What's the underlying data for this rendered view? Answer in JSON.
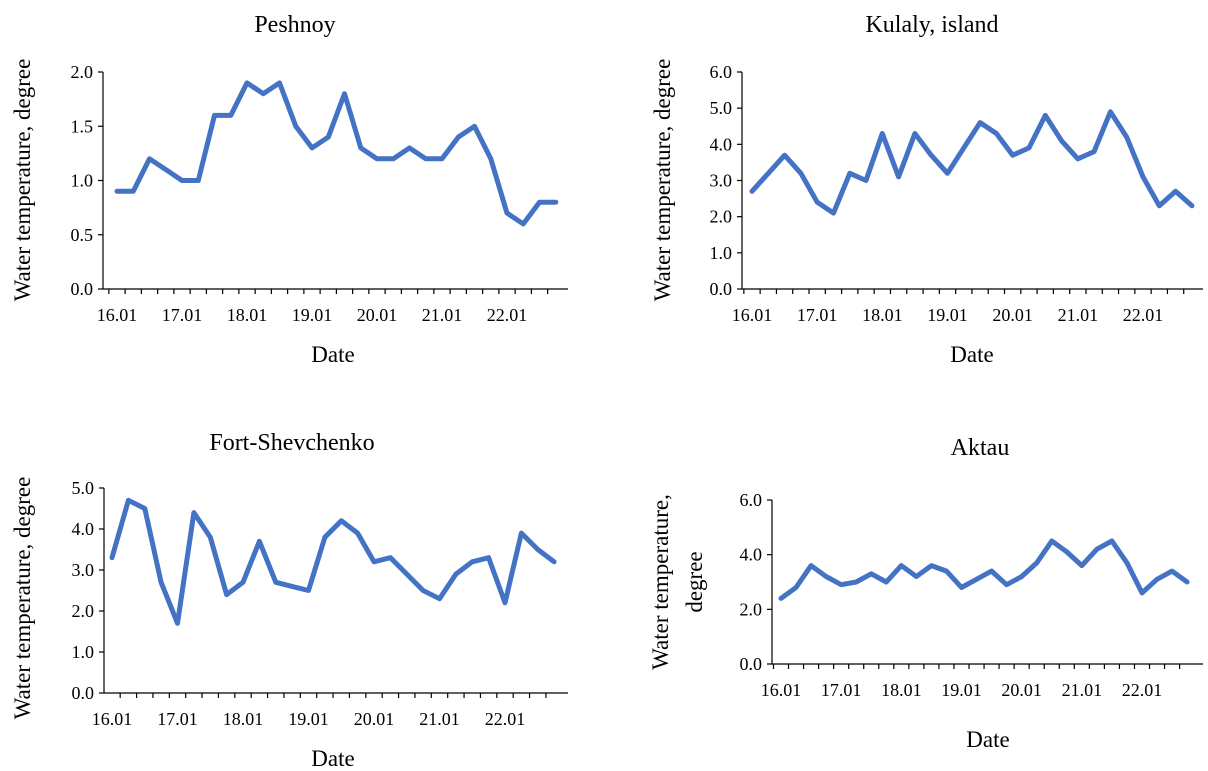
{
  "chart_data": [
    {
      "type": "line",
      "title": "Peshnoy",
      "xlabel": "Date",
      "ylabel": "Water temperature, degree",
      "ylim": [
        0,
        2
      ],
      "yticks": [
        "0.0",
        "0.5",
        "1.0",
        "1.5",
        "2.0"
      ],
      "xticks": [
        "16.01",
        "17.01",
        "18.01",
        "19.01",
        "20.01",
        "21.01",
        "22.01"
      ],
      "values": [
        0.9,
        0.9,
        1.2,
        1.1,
        1.0,
        1.0,
        1.6,
        1.6,
        1.9,
        1.8,
        1.9,
        1.5,
        1.3,
        1.4,
        1.8,
        1.3,
        1.2,
        1.2,
        1.3,
        1.2,
        1.2,
        1.4,
        1.5,
        1.2,
        0.7,
        0.6,
        0.8,
        0.8
      ],
      "color": "#4472C4",
      "grid": false
    },
    {
      "type": "line",
      "title": "Kulaly, island",
      "xlabel": "Date",
      "ylabel": "Water temperature, degree",
      "ylim": [
        0,
        6
      ],
      "yticks": [
        "0.0",
        "1.0",
        "2.0",
        "3.0",
        "4.0",
        "5.0",
        "6.0"
      ],
      "xticks": [
        "16.01",
        "17.01",
        "18.01",
        "19.01",
        "20.01",
        "21.01",
        "22.01"
      ],
      "values": [
        2.7,
        3.2,
        3.7,
        3.2,
        2.4,
        2.1,
        3.2,
        3.0,
        4.3,
        3.1,
        4.3,
        3.7,
        3.2,
        3.9,
        4.6,
        4.3,
        3.7,
        3.9,
        4.8,
        4.1,
        3.6,
        3.8,
        4.9,
        4.2,
        3.1,
        2.3,
        2.7,
        2.3
      ],
      "color": "#4472C4",
      "grid": false
    },
    {
      "type": "line",
      "title": "Fort-Shevchenko",
      "xlabel": "Date",
      "ylabel": "Water temperature, degree",
      "ylim": [
        0,
        5
      ],
      "yticks": [
        "0.0",
        "1.0",
        "2.0",
        "3.0",
        "4.0",
        "5.0"
      ],
      "xticks": [
        "16.01",
        "17.01",
        "18.01",
        "19.01",
        "20.01",
        "21.01",
        "22.01"
      ],
      "values": [
        3.3,
        4.7,
        4.5,
        2.7,
        1.7,
        4.4,
        3.8,
        2.4,
        2.7,
        3.7,
        2.7,
        2.6,
        2.5,
        3.8,
        4.2,
        3.9,
        3.2,
        3.3,
        2.9,
        2.5,
        2.3,
        2.9,
        3.2,
        3.3,
        2.2,
        3.9,
        3.5,
        3.2
      ],
      "color": "#4472C4",
      "grid": false
    },
    {
      "type": "line",
      "title": "Aktau",
      "xlabel": "Date",
      "ylabel_lines": [
        "Water temperature,",
        "degree"
      ],
      "ylim": [
        0,
        6
      ],
      "yticks": [
        "0.0",
        "2.0",
        "4.0",
        "6.0"
      ],
      "xticks": [
        "16.01",
        "17.01",
        "18.01",
        "19.01",
        "20.01",
        "21.01",
        "22.01"
      ],
      "values": [
        2.4,
        2.8,
        3.6,
        3.2,
        2.9,
        3.0,
        3.3,
        3.0,
        3.6,
        3.2,
        3.6,
        3.4,
        2.8,
        3.1,
        3.4,
        2.9,
        3.2,
        3.7,
        4.5,
        4.1,
        3.6,
        4.2,
        4.5,
        3.7,
        2.6,
        3.1,
        3.4,
        3.0
      ],
      "color": "#4472C4",
      "grid": false
    }
  ]
}
